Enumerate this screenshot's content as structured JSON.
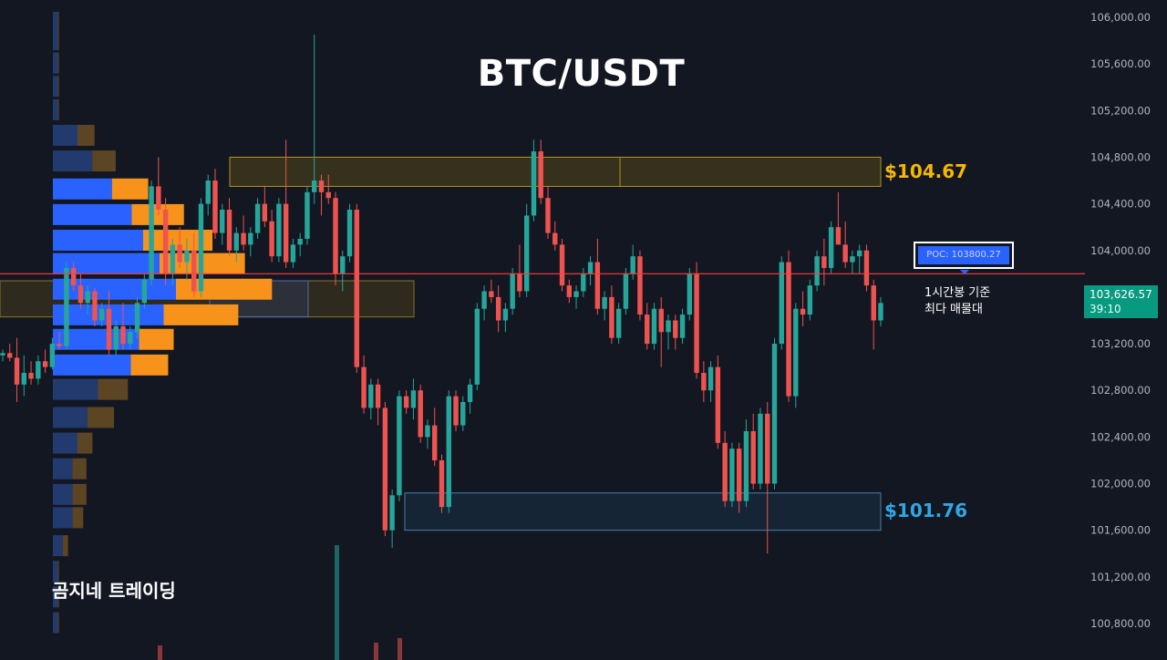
{
  "header": {
    "title": "BTC/USDT"
  },
  "branding": {
    "channel_name": "곰지네 트레이딩"
  },
  "levels": {
    "resistance": {
      "label": "$104.67",
      "price": 104670,
      "color": "#f5b800"
    },
    "support": {
      "label": "$101.76",
      "price": 101760,
      "color": "#2fa7e6"
    },
    "poc": {
      "label": "POC: 103800.27",
      "price": 103800.27,
      "color": "#ff3b3b"
    }
  },
  "poc_note": {
    "line1": "1시간봉 기준",
    "line2": "최다 매물대"
  },
  "current_price": {
    "value": "103,626.57",
    "countdown": "39:10",
    "color": "#089981"
  },
  "colors": {
    "up": "#26a69a",
    "down": "#ef5350",
    "background": "#131722",
    "volume_profile_up": "#2962ff",
    "volume_profile_down": "#f7931a"
  },
  "chart_data": {
    "type": "candlestick",
    "title": "BTC/USDT",
    "y_axis": {
      "ticks": [
        "106,000.00",
        "105,600.00",
        "105,200.00",
        "104,800.00",
        "104,400.00",
        "104,000.00",
        "103,600.00",
        "103,200.00",
        "102,800.00",
        "102,400.00",
        "102,000.00",
        "101,600.00",
        "101,200.00",
        "100,800.00"
      ],
      "tick_values": [
        106000,
        105600,
        105200,
        104800,
        104400,
        104000,
        103600,
        103200,
        102800,
        102400,
        102000,
        101600,
        101200,
        100800
      ],
      "ylim": [
        100700,
        106200
      ]
    },
    "candles": [
      [
        103100,
        103150,
        103050,
        103120
      ],
      [
        103120,
        103200,
        103050,
        103080
      ],
      [
        103080,
        103250,
        102700,
        102850
      ],
      [
        102850,
        103100,
        102750,
        102950
      ],
      [
        102950,
        103050,
        102850,
        102900
      ],
      [
        102900,
        103100,
        102850,
        103050
      ],
      [
        103050,
        103150,
        102950,
        103000
      ],
      [
        103000,
        103250,
        102980,
        103200
      ],
      [
        103200,
        103300,
        103150,
        103180
      ],
      [
        103180,
        103900,
        103150,
        103850
      ],
      [
        103850,
        103900,
        103650,
        103700
      ],
      [
        103700,
        103800,
        103500,
        103550
      ],
      [
        103550,
        103700,
        103450,
        103650
      ],
      [
        103650,
        103680,
        103350,
        103400
      ],
      [
        103400,
        103550,
        103350,
        103500
      ],
      [
        103500,
        103650,
        103100,
        103150
      ],
      [
        103150,
        103400,
        103100,
        103350
      ],
      [
        103350,
        103550,
        103150,
        103200
      ],
      [
        103200,
        103350,
        103150,
        103300
      ],
      [
        103300,
        103600,
        103250,
        103550
      ],
      [
        103550,
        103800,
        103500,
        103750
      ],
      [
        103750,
        104600,
        103700,
        104550
      ],
      [
        104550,
        104800,
        104300,
        104350
      ],
      [
        104350,
        104450,
        103700,
        103800
      ],
      [
        103800,
        104100,
        103700,
        104050
      ],
      [
        104050,
        104200,
        103850,
        103900
      ],
      [
        103900,
        104100,
        103750,
        104000
      ],
      [
        104000,
        104150,
        103600,
        103650
      ],
      [
        103650,
        104450,
        103600,
        104400
      ],
      [
        104400,
        104650,
        104300,
        104600
      ],
      [
        104600,
        104700,
        104100,
        104150
      ],
      [
        104150,
        104400,
        104050,
        104350
      ],
      [
        104350,
        104450,
        103950,
        104000
      ],
      [
        104000,
        104200,
        103900,
        104150
      ],
      [
        104150,
        104300,
        104000,
        104050
      ],
      [
        104050,
        104200,
        103950,
        104150
      ],
      [
        104150,
        104450,
        104100,
        104400
      ],
      [
        104400,
        104550,
        104200,
        104250
      ],
      [
        104250,
        104350,
        103900,
        103950
      ],
      [
        103950,
        104450,
        103900,
        104400
      ],
      [
        104400,
        104950,
        103850,
        103900
      ],
      [
        103900,
        104100,
        103850,
        104050
      ],
      [
        104050,
        104150,
        103950,
        104100
      ],
      [
        104100,
        104550,
        104050,
        104500
      ],
      [
        104500,
        105850,
        104400,
        104600
      ],
      [
        104600,
        104650,
        104300,
        104500
      ],
      [
        104500,
        104650,
        104400,
        104450
      ],
      [
        104450,
        104500,
        103700,
        103800
      ],
      [
        103800,
        104000,
        103650,
        103950
      ],
      [
        103950,
        104400,
        103900,
        104350
      ],
      [
        104350,
        104400,
        102950,
        103000
      ],
      [
        103000,
        103100,
        102600,
        102650
      ],
      [
        102650,
        102900,
        102550,
        102850
      ],
      [
        102850,
        102900,
        102500,
        102650
      ],
      [
        102650,
        102700,
        101550,
        101600
      ],
      [
        101600,
        101950,
        101450,
        101900
      ],
      [
        101900,
        102800,
        101850,
        102750
      ],
      [
        102750,
        102800,
        102600,
        102650
      ],
      [
        102650,
        102900,
        102550,
        102800
      ],
      [
        102800,
        102850,
        102350,
        102400
      ],
      [
        102400,
        102550,
        102300,
        102500
      ],
      [
        102500,
        102650,
        102150,
        102200
      ],
      [
        102200,
        102250,
        101750,
        101800
      ],
      [
        101800,
        102800,
        101750,
        102750
      ],
      [
        102750,
        102800,
        102450,
        102500
      ],
      [
        102500,
        102750,
        102450,
        102700
      ],
      [
        102700,
        102900,
        102600,
        102850
      ],
      [
        102850,
        103550,
        102800,
        103500
      ],
      [
        103500,
        103700,
        103400,
        103650
      ],
      [
        103650,
        103750,
        103550,
        103600
      ],
      [
        103600,
        103700,
        103300,
        103400
      ],
      [
        103400,
        103550,
        103300,
        103500
      ],
      [
        103500,
        103850,
        103450,
        103800
      ],
      [
        103800,
        104050,
        103600,
        103650
      ],
      [
        103650,
        104400,
        103600,
        104300
      ],
      [
        104300,
        104950,
        104250,
        104850
      ],
      [
        104850,
        104950,
        104400,
        104450
      ],
      [
        104450,
        104550,
        104100,
        104150
      ],
      [
        104150,
        104250,
        104000,
        104050
      ],
      [
        104050,
        104100,
        103650,
        103700
      ],
      [
        103700,
        103750,
        103550,
        103600
      ],
      [
        103600,
        103700,
        103500,
        103650
      ],
      [
        103650,
        103850,
        103600,
        103800
      ],
      [
        103800,
        103950,
        103700,
        103900
      ],
      [
        103900,
        104100,
        103450,
        103500
      ],
      [
        103500,
        103650,
        103400,
        103600
      ],
      [
        103600,
        103700,
        103200,
        103250
      ],
      [
        103250,
        103550,
        103200,
        103500
      ],
      [
        103500,
        103850,
        103450,
        103800
      ],
      [
        103800,
        104050,
        103750,
        103950
      ],
      [
        103950,
        104000,
        103400,
        103450
      ],
      [
        103450,
        103550,
        103150,
        103200
      ],
      [
        103200,
        103550,
        103150,
        103500
      ],
      [
        103500,
        103600,
        103000,
        103300
      ],
      [
        103300,
        103450,
        103150,
        103400
      ],
      [
        103400,
        103450,
        103150,
        103250
      ],
      [
        103250,
        103500,
        103200,
        103450
      ],
      [
        103450,
        103850,
        103400,
        103800
      ],
      [
        103800,
        103900,
        102900,
        102950
      ],
      [
        102950,
        103050,
        102700,
        102800
      ],
      [
        102800,
        103050,
        102700,
        103000
      ],
      [
        103000,
        103100,
        102300,
        102350
      ],
      [
        102350,
        102450,
        101800,
        101850
      ],
      [
        101850,
        102350,
        101800,
        102300
      ],
      [
        102300,
        102350,
        101750,
        101850
      ],
      [
        101850,
        102550,
        101800,
        102450
      ],
      [
        102450,
        102600,
        101950,
        102000
      ],
      [
        102000,
        102650,
        101950,
        102600
      ],
      [
        102600,
        102700,
        101400,
        102000
      ],
      [
        102000,
        103250,
        101950,
        103200
      ],
      [
        103200,
        103950,
        103150,
        103900
      ],
      [
        103900,
        104000,
        102700,
        102750
      ],
      [
        102750,
        103550,
        102650,
        103500
      ],
      [
        103500,
        103650,
        103350,
        103450
      ],
      [
        103450,
        103750,
        103400,
        103700
      ],
      [
        103700,
        104000,
        103650,
        103950
      ],
      [
        103950,
        104100,
        103700,
        103850
      ],
      [
        103850,
        104250,
        103800,
        104200
      ],
      [
        104200,
        104500,
        104100,
        104050
      ],
      [
        104050,
        104250,
        103850,
        103900
      ],
      [
        103900,
        104000,
        103800,
        103950
      ],
      [
        103950,
        104050,
        103800,
        104000
      ],
      [
        104000,
        104050,
        103650,
        103700
      ],
      [
        103700,
        103750,
        103150,
        103400
      ],
      [
        103400,
        103600,
        103350,
        103550
      ]
    ],
    "volume_profile": [
      {
        "price": 105950,
        "up": 6,
        "down": 2
      },
      {
        "price": 105800,
        "up": 6,
        "down": 2
      },
      {
        "price": 105600,
        "up": 6,
        "down": 2
      },
      {
        "price": 105400,
        "up": 6,
        "down": 2
      },
      {
        "price": 105200,
        "up": 6,
        "down": 2
      },
      {
        "price": 104980,
        "up": 30,
        "down": 32
      },
      {
        "price": 104760,
        "up": 48,
        "down": 44
      },
      {
        "price": 104520,
        "up": 72,
        "down": 68
      },
      {
        "price": 104300,
        "up": 96,
        "down": 98
      },
      {
        "price": 104080,
        "up": 110,
        "down": 130
      },
      {
        "price": 103880,
        "up": 130,
        "down": 160
      },
      {
        "price": 103660,
        "up": 150,
        "down": 180
      },
      {
        "price": 103440,
        "up": 135,
        "down": 140
      },
      {
        "price": 103230,
        "up": 105,
        "down": 65
      },
      {
        "price": 103010,
        "up": 95,
        "down": 70
      },
      {
        "price": 102800,
        "up": 55,
        "down": 56
      },
      {
        "price": 102560,
        "up": 42,
        "down": 50
      },
      {
        "price": 102340,
        "up": 30,
        "down": 28
      },
      {
        "price": 102120,
        "up": 24,
        "down": 26
      },
      {
        "price": 101900,
        "up": 24,
        "down": 26
      },
      {
        "price": 101700,
        "up": 24,
        "down": 20
      },
      {
        "price": 101460,
        "up": 12,
        "down": 10
      },
      {
        "price": 101240,
        "up": 6,
        "down": 2
      },
      {
        "price": 101020,
        "up": 6,
        "down": 2
      },
      {
        "price": 100800,
        "up": 6,
        "down": 2
      }
    ],
    "zones": [
      {
        "name": "resistance-zone",
        "from": 104550,
        "to": 104800
      },
      {
        "name": "support-zone",
        "from": 101600,
        "to": 101920
      },
      {
        "name": "poc-zone",
        "from": 103430,
        "to": 103740
      }
    ]
  }
}
